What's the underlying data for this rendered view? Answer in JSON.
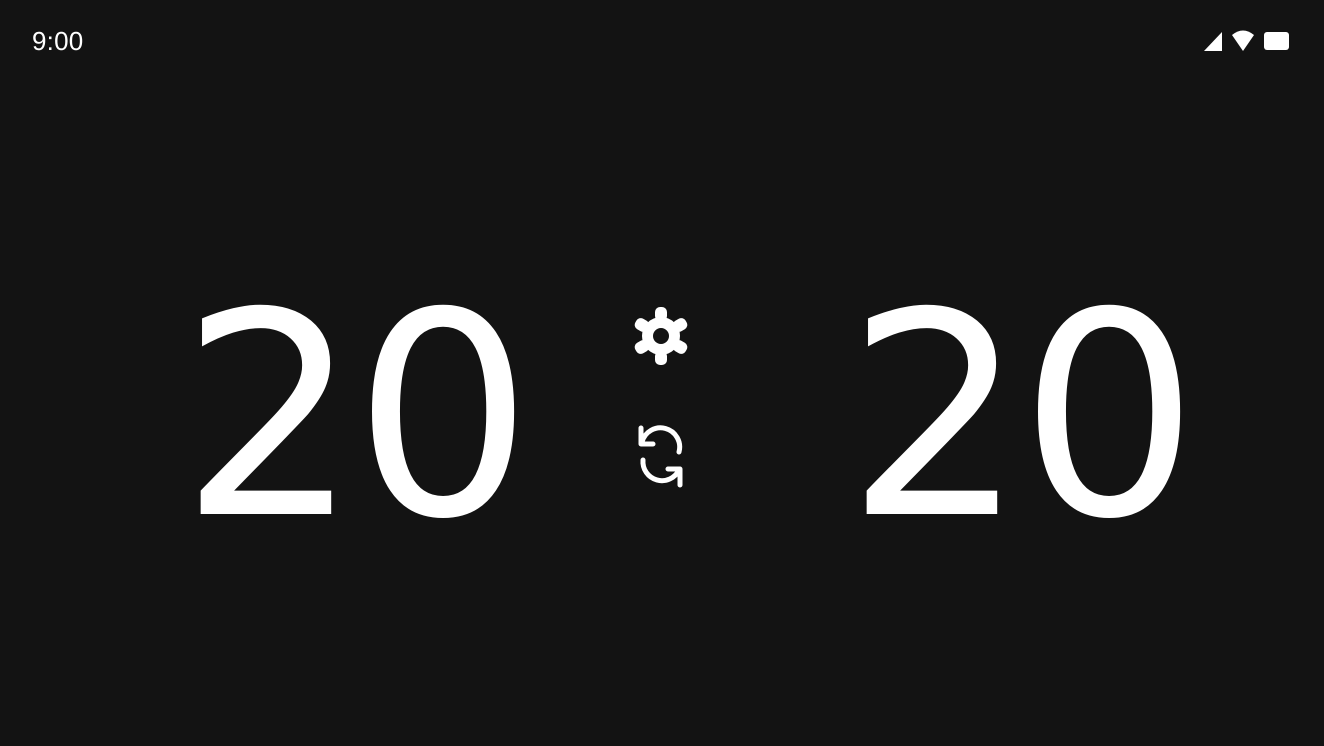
{
  "status_bar": {
    "time": "9:00",
    "icons": [
      "cellular-signal-icon",
      "wifi-icon",
      "battery-icon"
    ]
  },
  "scoreboard": {
    "left_score": "20",
    "right_score": "20"
  },
  "controls": {
    "settings_icon": "gear-icon",
    "reset_icon": "refresh-icon"
  },
  "colors": {
    "background": "#131313",
    "foreground": "#ffffff"
  }
}
